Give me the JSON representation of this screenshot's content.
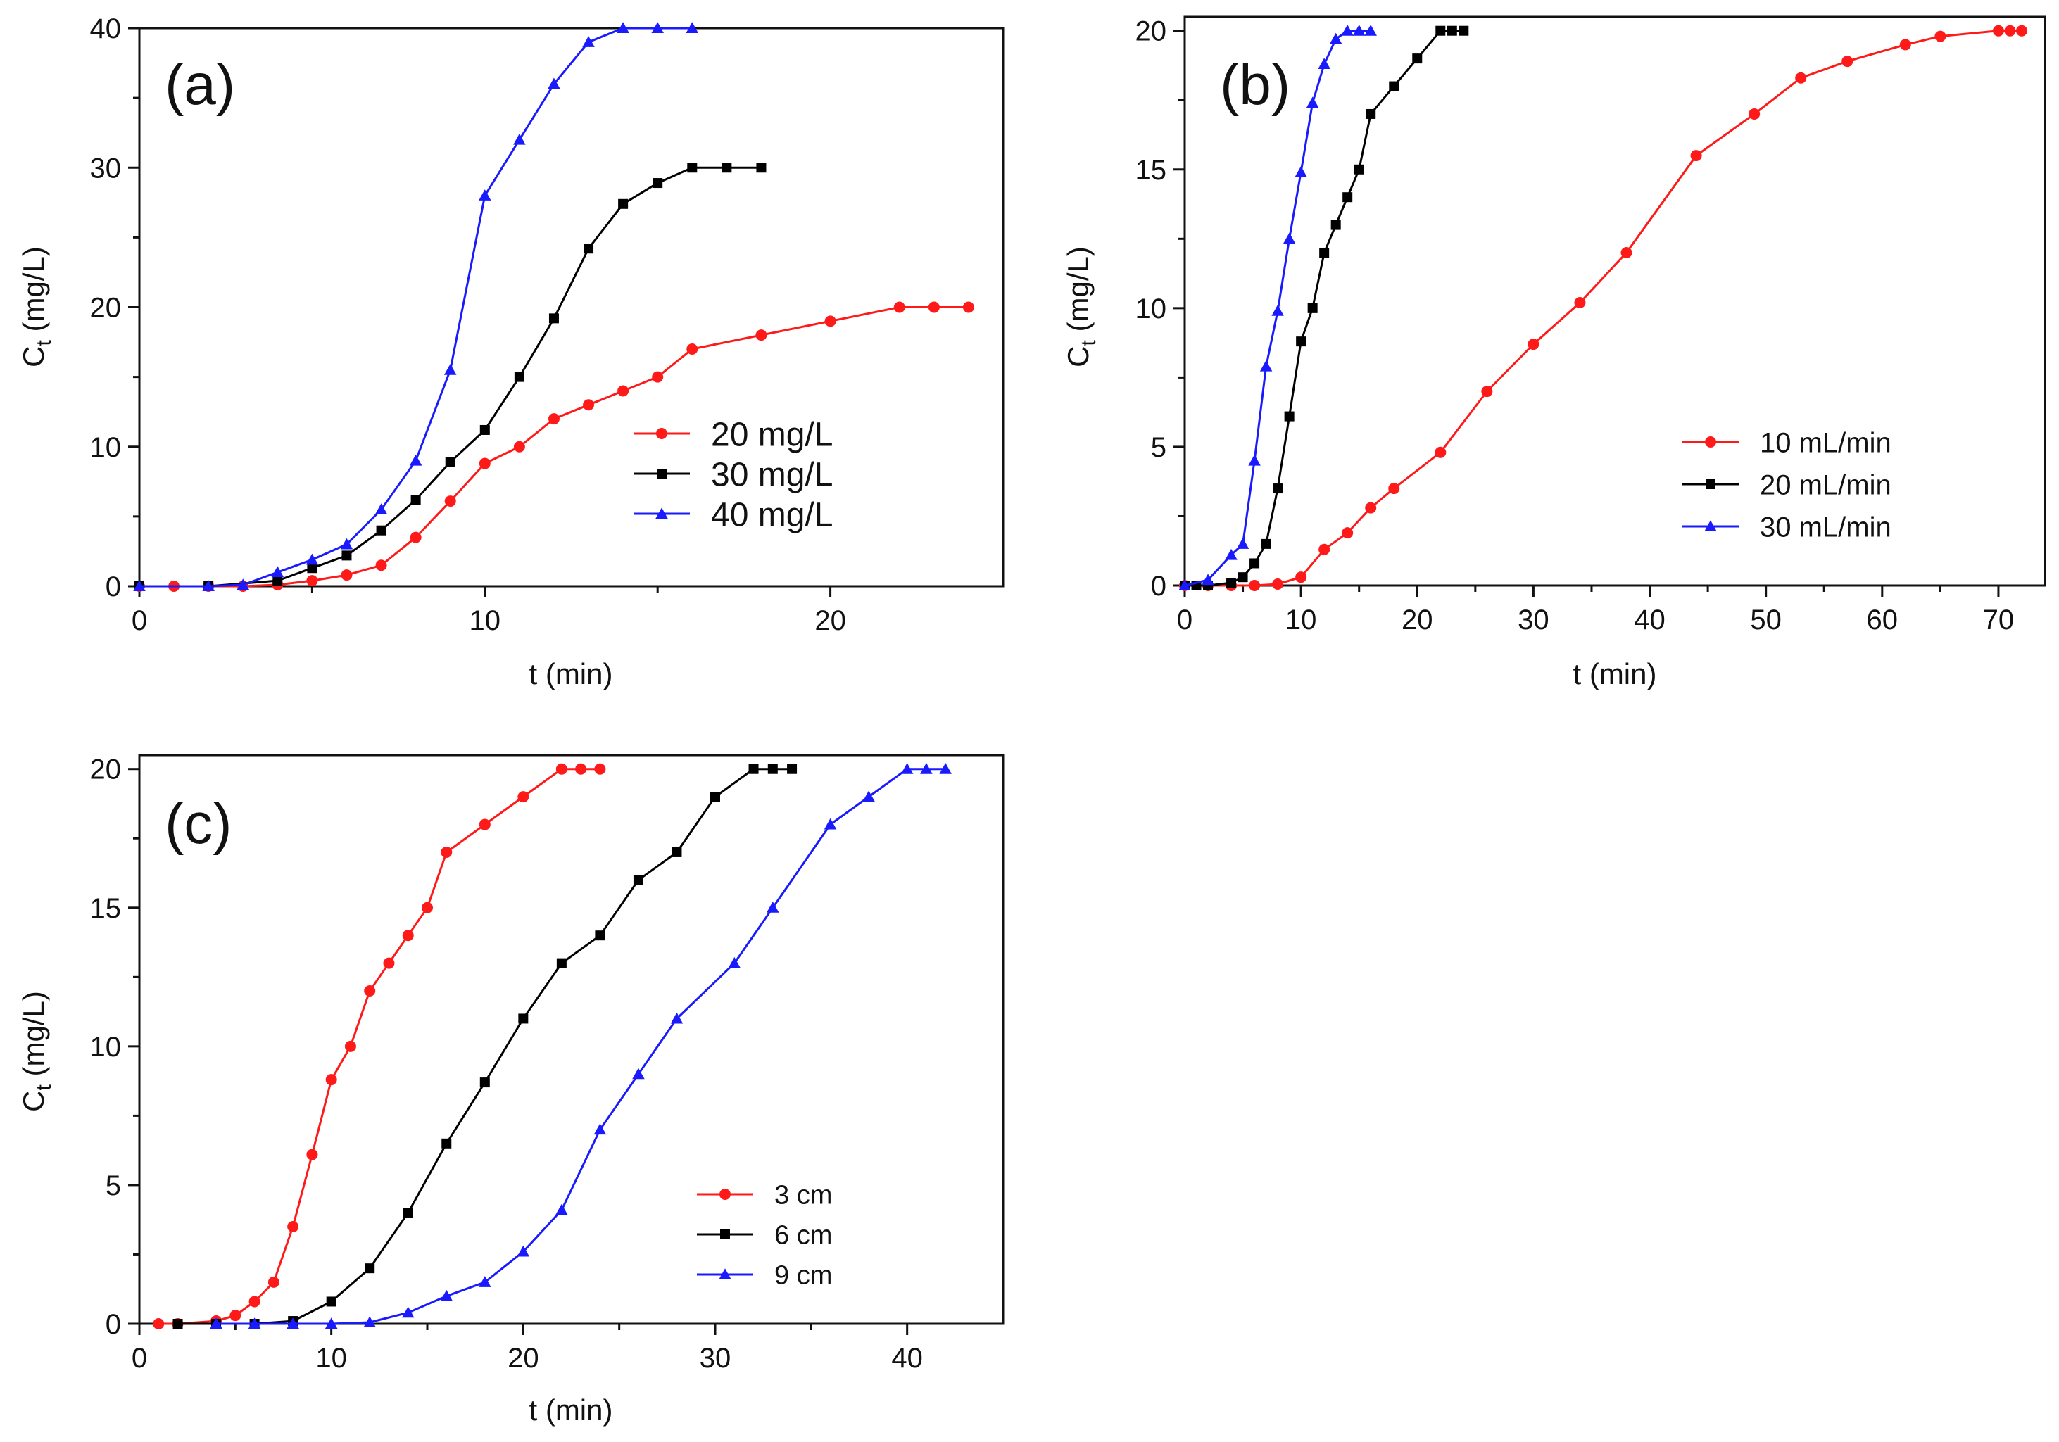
{
  "chart_data": [
    {
      "id": "a",
      "type": "line",
      "panel_label": "(a)",
      "xlabel": "t (min)",
      "ylabel_main": "C",
      "ylabel_sub": "t",
      "ylabel_unit": " (mg/L)",
      "xlim": [
        0,
        25
      ],
      "ylim": [
        0,
        40
      ],
      "xticks": [
        0,
        10,
        20
      ],
      "yticks": [
        0,
        10,
        20,
        30,
        40
      ],
      "legend_position": "right-middle",
      "series": [
        {
          "name": "20 mg/L",
          "color": "#ff1a1a",
          "marker": "circle",
          "x": [
            0,
            1,
            2,
            3,
            4,
            5,
            6,
            7,
            8,
            9,
            10,
            11,
            12,
            13,
            14,
            15,
            16,
            18,
            20,
            22,
            23,
            24
          ],
          "y": [
            0,
            0,
            0,
            0,
            0.1,
            0.4,
            0.8,
            1.5,
            3.5,
            6.1,
            8.8,
            10,
            12,
            13,
            14,
            15,
            17,
            18,
            19,
            20,
            20,
            20
          ]
        },
        {
          "name": "30 mg/L",
          "color": "#000000",
          "marker": "square",
          "x": [
            0,
            2,
            4,
            5,
            6,
            7,
            8,
            9,
            10,
            11,
            12,
            13,
            14,
            15,
            16,
            17,
            18
          ],
          "y": [
            0,
            0,
            0.4,
            1.3,
            2.2,
            4,
            6.2,
            8.9,
            11.2,
            15,
            19.2,
            24.2,
            27.4,
            28.9,
            30,
            30,
            30
          ]
        },
        {
          "name": "40 mg/L",
          "color": "#1a1aff",
          "marker": "triangle",
          "x": [
            0,
            2,
            3,
            4,
            5,
            6,
            7,
            8,
            9,
            10,
            11,
            12,
            13,
            14,
            15,
            16
          ],
          "y": [
            0,
            0,
            0.1,
            1,
            1.9,
            3,
            5.5,
            9,
            15.5,
            28,
            32,
            36,
            39,
            40,
            40,
            40
          ]
        }
      ]
    },
    {
      "id": "b",
      "type": "line",
      "panel_label": "(b)",
      "xlabel": "t (min)",
      "ylabel_main": "C",
      "ylabel_sub": "t",
      "ylabel_unit": " (mg/L)",
      "xlim": [
        0,
        74
      ],
      "ylim": [
        0,
        20.5
      ],
      "xticks": [
        0,
        10,
        20,
        30,
        40,
        50,
        60,
        70
      ],
      "yticks": [
        0,
        5,
        10,
        15,
        20
      ],
      "legend_position": "bottom-right",
      "series": [
        {
          "name": "10 mL/min",
          "color": "#ff1a1a",
          "marker": "circle",
          "x": [
            0,
            2,
            4,
            6,
            8,
            10,
            12,
            14,
            16,
            18,
            22,
            26,
            30,
            34,
            38,
            44,
            49,
            53,
            57,
            62,
            65,
            70,
            71,
            72
          ],
          "y": [
            0,
            0,
            0,
            0,
            0.05,
            0.3,
            1.3,
            1.9,
            2.8,
            3.5,
            4.8,
            7,
            8.7,
            10.2,
            12,
            15.5,
            17,
            18.3,
            18.9,
            19.5,
            19.8,
            20,
            20,
            20
          ]
        },
        {
          "name": "20 mL/min",
          "color": "#000000",
          "marker": "square",
          "x": [
            0,
            1,
            2,
            4,
            5,
            6,
            7,
            8,
            9,
            10,
            11,
            12,
            13,
            14,
            15,
            16,
            18,
            20,
            22,
            23,
            24
          ],
          "y": [
            0,
            0,
            0,
            0.1,
            0.3,
            0.8,
            1.5,
            3.5,
            6.1,
            8.8,
            10,
            12,
            13,
            14,
            15,
            17,
            18,
            19,
            20,
            20,
            20
          ]
        },
        {
          "name": "30 mL/min",
          "color": "#1a1aff",
          "marker": "triangle",
          "x": [
            0,
            2,
            4,
            5,
            6,
            7,
            8,
            9,
            10,
            11,
            12,
            13,
            14,
            15,
            16
          ],
          "y": [
            0,
            0.2,
            1.1,
            1.5,
            4.5,
            7.9,
            9.9,
            12.5,
            14.9,
            17.4,
            18.8,
            19.7,
            20,
            20,
            20
          ]
        }
      ]
    },
    {
      "id": "c",
      "type": "line",
      "panel_label": "(c)",
      "xlabel": "t (min)",
      "ylabel_main": "C",
      "ylabel_sub": "t",
      "ylabel_unit": " (mg/L)",
      "xlim": [
        0,
        45
      ],
      "ylim": [
        0,
        20.5
      ],
      "xticks": [
        0,
        10,
        20,
        30,
        40
      ],
      "yticks": [
        0,
        5,
        10,
        15,
        20
      ],
      "legend_position": "bottom-right",
      "series": [
        {
          "name": "3 cm",
          "color": "#ff1a1a",
          "marker": "circle",
          "x": [
            1,
            2,
            4,
            5,
            6,
            7,
            8,
            9,
            10,
            11,
            12,
            13,
            14,
            15,
            16,
            18,
            20,
            22,
            23,
            24
          ],
          "y": [
            0,
            0,
            0.1,
            0.3,
            0.8,
            1.5,
            3.5,
            6.1,
            8.8,
            10,
            12,
            13,
            14,
            15,
            17,
            18,
            19,
            20,
            20,
            20
          ]
        },
        {
          "name": "6 cm",
          "color": "#000000",
          "marker": "square",
          "x": [
            2,
            4,
            6,
            8,
            10,
            12,
            14,
            16,
            18,
            20,
            22,
            24,
            26,
            28,
            30,
            32,
            33,
            34
          ],
          "y": [
            0,
            0,
            0,
            0.1,
            0.8,
            2,
            4,
            6.5,
            8.7,
            11,
            13,
            14,
            16,
            17,
            19,
            20,
            20,
            20
          ]
        },
        {
          "name": "9 cm",
          "color": "#1a1aff",
          "marker": "triangle",
          "x": [
            4,
            6,
            8,
            10,
            12,
            14,
            16,
            18,
            20,
            22,
            24,
            26,
            28,
            31,
            33,
            36,
            38,
            40,
            41,
            42
          ],
          "y": [
            0,
            0,
            0,
            0,
            0.05,
            0.4,
            1,
            1.5,
            2.6,
            4.1,
            7,
            9,
            11,
            13,
            15,
            18,
            19,
            20,
            20,
            20
          ]
        }
      ]
    }
  ]
}
